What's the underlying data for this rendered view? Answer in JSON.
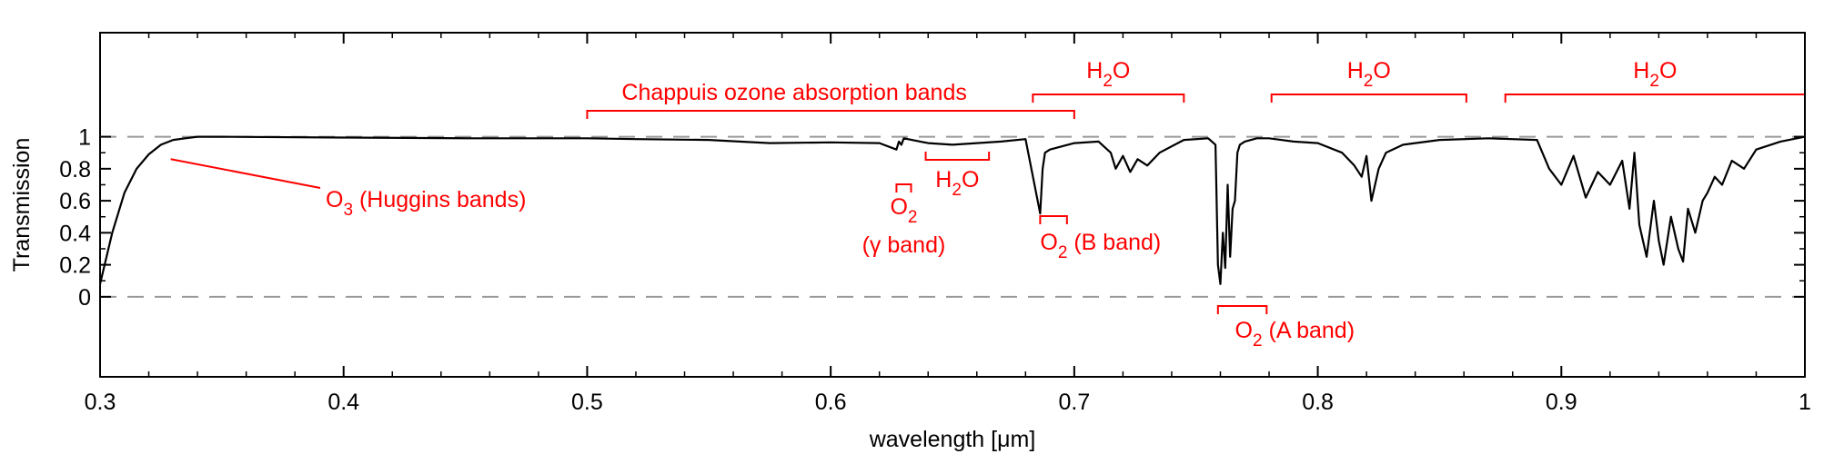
{
  "chart_data": {
    "type": "line",
    "title": "",
    "xlabel": "wavelength [μm]",
    "ylabel": "Transmission",
    "xlim": [
      0.3,
      1.0
    ],
    "ylim": [
      -0.5,
      1.65
    ],
    "x_ticks": [
      "0.3",
      "0.4",
      "0.5",
      "0.6",
      "0.7",
      "0.8",
      "0.9",
      "1"
    ],
    "y_ticks": [
      "0",
      "0.2",
      "0.4",
      "0.6",
      "0.8",
      "1"
    ],
    "y_tick_values": [
      0,
      0.2,
      0.4,
      0.6,
      0.8,
      1.0
    ],
    "reference_lines": [
      1,
      0
    ],
    "grid": false,
    "series": [
      {
        "x": [
          0.3,
          0.305,
          0.31,
          0.315,
          0.32,
          0.325,
          0.33,
          0.335,
          0.34,
          0.35,
          0.4,
          0.45,
          0.5,
          0.52,
          0.55,
          0.575,
          0.6,
          0.62,
          0.627,
          0.628,
          0.629,
          0.63,
          0.64,
          0.65,
          0.66,
          0.67,
          0.68,
          0.686,
          0.687,
          0.688,
          0.69,
          0.7,
          0.71,
          0.715,
          0.717,
          0.72,
          0.723,
          0.726,
          0.73,
          0.735,
          0.745,
          0.755,
          0.758,
          0.759,
          0.76,
          0.761,
          0.762,
          0.763,
          0.764,
          0.765,
          0.766,
          0.767,
          0.768,
          0.77,
          0.775,
          0.78,
          0.79,
          0.8,
          0.81,
          0.815,
          0.818,
          0.82,
          0.822,
          0.825,
          0.828,
          0.835,
          0.85,
          0.87,
          0.89,
          0.895,
          0.9,
          0.905,
          0.91,
          0.915,
          0.92,
          0.925,
          0.928,
          0.93,
          0.932,
          0.935,
          0.938,
          0.94,
          0.942,
          0.945,
          0.948,
          0.95,
          0.952,
          0.955,
          0.958,
          0.96,
          0.963,
          0.966,
          0.97,
          0.975,
          0.98,
          0.99,
          1.0
        ],
        "y": [
          0.08,
          0.4,
          0.65,
          0.8,
          0.89,
          0.95,
          0.98,
          0.99,
          1.0,
          1.0,
          0.995,
          0.99,
          0.99,
          0.985,
          0.98,
          0.96,
          0.965,
          0.96,
          0.92,
          0.97,
          0.95,
          0.99,
          0.96,
          0.95,
          0.96,
          0.97,
          0.985,
          0.52,
          0.8,
          0.9,
          0.92,
          0.96,
          0.97,
          0.9,
          0.8,
          0.88,
          0.78,
          0.86,
          0.82,
          0.9,
          0.98,
          0.99,
          0.95,
          0.2,
          0.08,
          0.4,
          0.18,
          0.7,
          0.25,
          0.55,
          0.6,
          0.9,
          0.95,
          0.97,
          0.99,
          0.99,
          0.97,
          0.96,
          0.9,
          0.82,
          0.75,
          0.88,
          0.6,
          0.8,
          0.9,
          0.95,
          0.98,
          0.99,
          0.98,
          0.8,
          0.7,
          0.88,
          0.62,
          0.78,
          0.7,
          0.85,
          0.55,
          0.9,
          0.45,
          0.25,
          0.6,
          0.35,
          0.2,
          0.5,
          0.3,
          0.22,
          0.55,
          0.4,
          0.6,
          0.65,
          0.75,
          0.7,
          0.85,
          0.8,
          0.92,
          0.97,
          1.0
        ]
      }
    ],
    "annotations": [
      {
        "text": "O3 (Huggins bands)",
        "label": "O",
        "sub": "3",
        "suffix": " (Huggins bands)",
        "target_x": 0.329,
        "target_y": 0.86
      },
      {
        "text": "Chappuis ozone absorption bands",
        "bracket": [
          0.5,
          0.7
        ]
      },
      {
        "text": "H2O",
        "label": "H",
        "sub": "2",
        "suffix": "O",
        "bracket": [
          0.683,
          0.745
        ]
      },
      {
        "text": "H2O",
        "label": "H",
        "sub": "2",
        "suffix": "O",
        "bracket": [
          0.781,
          0.861
        ]
      },
      {
        "text": "H2O",
        "label": "H",
        "sub": "2",
        "suffix": "O",
        "bracket": [
          0.877,
          1.0
        ]
      },
      {
        "text": "H2O",
        "label": "H",
        "sub": "2",
        "suffix": "O",
        "bracket": [
          0.639,
          0.665
        ]
      },
      {
        "text": "O2 (γ band)",
        "label": "O",
        "sub": "2",
        "line2": "(γ band)",
        "bracket": [
          0.627,
          0.633
        ]
      },
      {
        "text": "O2 (B band)",
        "label": "O",
        "sub": "2",
        "suffix": " (B band)",
        "bracket": [
          0.686,
          0.697
        ]
      },
      {
        "text": "O2 (A band)",
        "label": "O",
        "sub": "2",
        "suffix": " (A band)",
        "bracket": [
          0.759,
          0.779
        ]
      }
    ],
    "colors": {
      "curve": "#000000",
      "annotations": "#ff0000",
      "reference": "#999999"
    }
  }
}
